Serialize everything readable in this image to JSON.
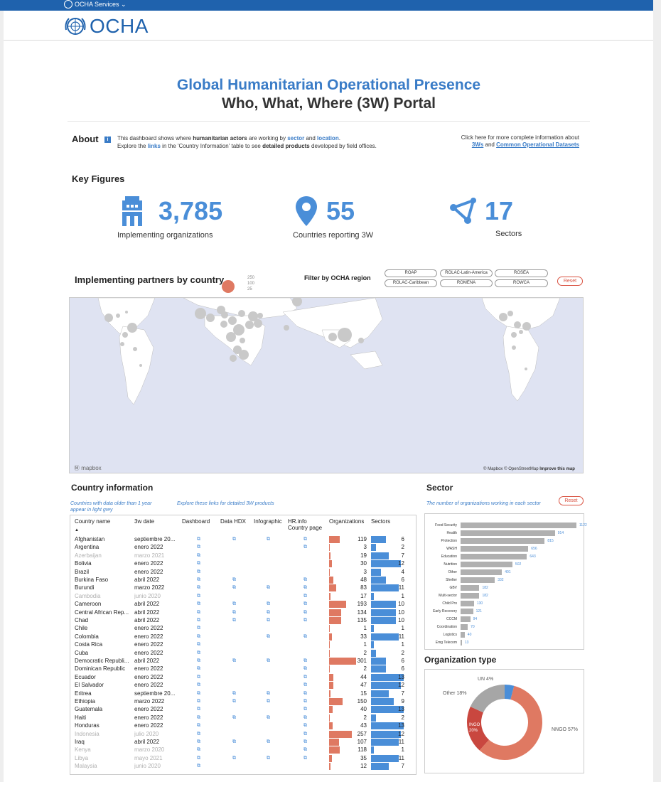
{
  "topbar": {
    "services_label": "OCHA Services ⌄"
  },
  "header": {
    "logo_text": "OCHA"
  },
  "titles": {
    "main": "Global Humanitarian Operational Presence",
    "sub": "Who, What, Where (3W) Portal"
  },
  "about": {
    "label": "About",
    "line1_a": "This dashboard shows where ",
    "line1_b": "humanitarian actors",
    "line1_c": " are working by ",
    "line1_d": "sector",
    "line1_e": " and ",
    "line1_f": "location",
    "line1_g": ".",
    "line2_a": "Explore the ",
    "line2_b": "links",
    "line2_c": " in the 'Country Information' table to see ",
    "line2_d": "detailed products",
    "line2_e": " developed by field offices.",
    "right_line1": "Click here for more complete information about",
    "right_link1": "3Ws",
    "right_and": " and ",
    "right_link2": "Common Operational Datasets"
  },
  "key_figures": {
    "label": "Key Figures",
    "orgs": {
      "value": "3,785",
      "label": "Implementing organizations",
      "icon": "building-icon"
    },
    "countries": {
      "value": "55",
      "label": "Countries reporting 3W",
      "icon": "map-pin-icon"
    },
    "sectors": {
      "value": "17",
      "label": "Sectors",
      "icon": "network-icon"
    }
  },
  "map_section": {
    "title": "Implementing partners by country",
    "legend": [
      "250",
      "100",
      "25"
    ],
    "filter_label": "Filter by OCHA region",
    "regions": [
      "ROAP",
      "ROLAC-Latin-America",
      "ROSEA",
      "ROLAC-Caribbean",
      "ROMENA",
      "ROWCA"
    ],
    "reset": "Reset",
    "logo": "Ⓜ mapbox",
    "attribution": "© Mapbox © OpenStreetMap ",
    "improve": "Improve this map",
    "bubble_color": "#c9c9c9",
    "land_color": "#ffffff",
    "water_color": "#dfe3f2"
  },
  "country_info": {
    "title": "Country information",
    "note_left": "Countries with data older than 1 year appear in light grey",
    "note_right": "Explore these links for detailed 3W products",
    "headers": [
      "Country name",
      "3w date",
      "Dashboard",
      "Data HDX",
      "Infographic",
      "HR.info Country page",
      "Organizations",
      "Sectors"
    ],
    "sort_arrow": "▲",
    "link_glyph": "⧉",
    "rows": [
      {
        "name": "Afghanistan",
        "date": "septiembre 20...",
        "d": 1,
        "h": 1,
        "i": 1,
        "r": 1,
        "orgs": 119,
        "sec": 6,
        "old": false
      },
      {
        "name": "Argentina",
        "date": "enero 2022",
        "d": 1,
        "h": 0,
        "i": 0,
        "r": 1,
        "orgs": 3,
        "sec": 2,
        "old": false
      },
      {
        "name": "Azerbaijan",
        "date": "marzo 2021",
        "d": 1,
        "h": 0,
        "i": 0,
        "r": 0,
        "orgs": 19,
        "sec": 7,
        "old": true
      },
      {
        "name": "Bolivia",
        "date": "enero 2022",
        "d": 1,
        "h": 0,
        "i": 0,
        "r": 0,
        "orgs": 30,
        "sec": 12,
        "old": false
      },
      {
        "name": "Brazil",
        "date": "enero 2022",
        "d": 1,
        "h": 0,
        "i": 0,
        "r": 0,
        "orgs": 3,
        "sec": 4,
        "old": false
      },
      {
        "name": "Burkina Faso",
        "date": "abril 2022",
        "d": 1,
        "h": 1,
        "i": 0,
        "r": 1,
        "orgs": 48,
        "sec": 6,
        "old": false
      },
      {
        "name": "Burundi",
        "date": "marzo 2022",
        "d": 1,
        "h": 1,
        "i": 1,
        "r": 1,
        "orgs": 83,
        "sec": 11,
        "old": false
      },
      {
        "name": "Cambodia",
        "date": "junio 2020",
        "d": 1,
        "h": 0,
        "i": 0,
        "r": 1,
        "orgs": 17,
        "sec": 1,
        "old": true
      },
      {
        "name": "Cameroon",
        "date": "abril 2022",
        "d": 1,
        "h": 1,
        "i": 1,
        "r": 1,
        "orgs": 193,
        "sec": 10,
        "old": false
      },
      {
        "name": "Central African Rep...",
        "date": "abril 2022",
        "d": 1,
        "h": 1,
        "i": 1,
        "r": 1,
        "orgs": 134,
        "sec": 10,
        "old": false
      },
      {
        "name": "Chad",
        "date": "abril 2022",
        "d": 1,
        "h": 1,
        "i": 1,
        "r": 1,
        "orgs": 135,
        "sec": 10,
        "old": false
      },
      {
        "name": "Chile",
        "date": "enero 2022",
        "d": 1,
        "h": 0,
        "i": 0,
        "r": 0,
        "orgs": 1,
        "sec": 1,
        "old": false
      },
      {
        "name": "Colombia",
        "date": "enero 2022",
        "d": 1,
        "h": 0,
        "i": 1,
        "r": 1,
        "orgs": 33,
        "sec": 11,
        "old": false
      },
      {
        "name": "Costa Rica",
        "date": "enero 2022",
        "d": 1,
        "h": 0,
        "i": 0,
        "r": 0,
        "orgs": 1,
        "sec": 1,
        "old": false
      },
      {
        "name": "Cuba",
        "date": "enero 2022",
        "d": 1,
        "h": 0,
        "i": 0,
        "r": 0,
        "orgs": 2,
        "sec": 2,
        "old": false
      },
      {
        "name": "Democratic Republi...",
        "date": "abril 2022",
        "d": 1,
        "h": 1,
        "i": 1,
        "r": 1,
        "orgs": 301,
        "sec": 6,
        "old": false
      },
      {
        "name": "Dominican Republic",
        "date": "enero 2022",
        "d": 1,
        "h": 0,
        "i": 0,
        "r": 1,
        "orgs": 2,
        "sec": 6,
        "old": false
      },
      {
        "name": "Ecuador",
        "date": "enero 2022",
        "d": 1,
        "h": 0,
        "i": 0,
        "r": 1,
        "orgs": 44,
        "sec": 13,
        "old": false
      },
      {
        "name": "El Salvador",
        "date": "enero 2022",
        "d": 1,
        "h": 0,
        "i": 0,
        "r": 1,
        "orgs": 47,
        "sec": 12,
        "old": false
      },
      {
        "name": "Eritrea",
        "date": "septiembre 20...",
        "d": 1,
        "h": 1,
        "i": 1,
        "r": 1,
        "orgs": 15,
        "sec": 7,
        "old": false
      },
      {
        "name": "Ethiopia",
        "date": "marzo 2022",
        "d": 1,
        "h": 1,
        "i": 1,
        "r": 1,
        "orgs": 150,
        "sec": 9,
        "old": false
      },
      {
        "name": "Guatemala",
        "date": "enero 2022",
        "d": 1,
        "h": 0,
        "i": 0,
        "r": 1,
        "orgs": 40,
        "sec": 13,
        "old": false
      },
      {
        "name": "Haiti",
        "date": "enero 2022",
        "d": 1,
        "h": 1,
        "i": 1,
        "r": 1,
        "orgs": 2,
        "sec": 2,
        "old": false
      },
      {
        "name": "Honduras",
        "date": "enero 2022",
        "d": 1,
        "h": 0,
        "i": 0,
        "r": 1,
        "orgs": 43,
        "sec": 13,
        "old": false
      },
      {
        "name": "Indonesia",
        "date": "julio 2020",
        "d": 1,
        "h": 0,
        "i": 0,
        "r": 1,
        "orgs": 257,
        "sec": 12,
        "old": true
      },
      {
        "name": "Iraq",
        "date": "abril 2022",
        "d": 1,
        "h": 1,
        "i": 1,
        "r": 1,
        "orgs": 107,
        "sec": 11,
        "old": false
      },
      {
        "name": "Kenya",
        "date": "marzo 2020",
        "d": 1,
        "h": 0,
        "i": 0,
        "r": 1,
        "orgs": 118,
        "sec": 1,
        "old": true
      },
      {
        "name": "Libya",
        "date": "mayo 2021",
        "d": 1,
        "h": 1,
        "i": 1,
        "r": 1,
        "orgs": 35,
        "sec": 11,
        "old": true
      },
      {
        "name": "Malaysia",
        "date": "junio 2020",
        "d": 1,
        "h": 0,
        "i": 0,
        "r": 0,
        "orgs": 12,
        "sec": 7,
        "old": true
      }
    ]
  },
  "sector": {
    "title": "Sector",
    "note": "The number of organizations working in each sector",
    "reset": "Reset",
    "items": [
      {
        "name": "Food Security",
        "value": 1122
      },
      {
        "name": "Health",
        "value": 914
      },
      {
        "name": "Protection",
        "value": 815
      },
      {
        "name": "WASH",
        "value": 656
      },
      {
        "name": "Education",
        "value": 643
      },
      {
        "name": "Nutrition",
        "value": 502
      },
      {
        "name": "Other",
        "value": 401
      },
      {
        "name": "Shelter",
        "value": 332
      },
      {
        "name": "GBV",
        "value": 182
      },
      {
        "name": "Multi-sector",
        "value": 182
      },
      {
        "name": "Child Pro",
        "value": 130
      },
      {
        "name": "Early Recovery",
        "value": 121
      },
      {
        "name": "CCCM",
        "value": 94
      },
      {
        "name": "Coordination",
        "value": 70
      },
      {
        "name": "Logistics",
        "value": 40
      },
      {
        "name": "Emg Telecom",
        "value": 13
      }
    ]
  },
  "org_type": {
    "title": "Organization type",
    "slices": [
      {
        "name": "NNGO",
        "label": "NNGO 57%",
        "pct": 57,
        "color": "#df7962"
      },
      {
        "name": "INGO",
        "label": "INGO 20%",
        "pct": 20,
        "color": "#c9473f"
      },
      {
        "name": "Other",
        "label": "Other 18%",
        "pct": 18,
        "color": "#a6a6a6"
      },
      {
        "name": "UN",
        "label": "UN 4%",
        "pct": 4,
        "color": "#4a8ed8"
      }
    ]
  },
  "colors": {
    "brand": "#1f62ad",
    "accent": "#4a8ed8",
    "orgs_bar": "#df7962",
    "reset": "#d9503f"
  }
}
